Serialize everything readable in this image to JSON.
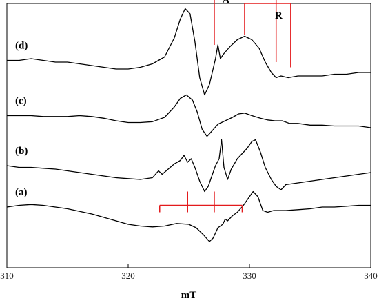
{
  "chart_data": {
    "type": "line",
    "title": "",
    "xlabel": "mT",
    "ylabel": "",
    "xlim": [
      310,
      340
    ],
    "xticks": [
      310,
      320,
      330,
      340
    ],
    "y_ticks_shown": false,
    "grid": false,
    "legend": "none",
    "line_color": "#000000",
    "annotation_color": "#e31a1c",
    "series": [
      {
        "name": "(a)",
        "baseline": 0.24,
        "points": [
          [
            310,
            0.24
          ],
          [
            311,
            0.25
          ],
          [
            312,
            0.255
          ],
          [
            313,
            0.25
          ],
          [
            314,
            0.24
          ],
          [
            315,
            0.23
          ],
          [
            316,
            0.215
          ],
          [
            317,
            0.2
          ],
          [
            318,
            0.18
          ],
          [
            319,
            0.16
          ],
          [
            320,
            0.14
          ],
          [
            321,
            0.13
          ],
          [
            322,
            0.125
          ],
          [
            323,
            0.13
          ],
          [
            324,
            0.145
          ],
          [
            325,
            0.14
          ],
          [
            325.6,
            0.12
          ],
          [
            326.2,
            0.08
          ],
          [
            326.7,
            0.04
          ],
          [
            327.0,
            0.06
          ],
          [
            327.4,
            0.12
          ],
          [
            327.8,
            0.14
          ],
          [
            328.0,
            0.17
          ],
          [
            328.2,
            0.16
          ],
          [
            328.6,
            0.19
          ],
          [
            329,
            0.21
          ],
          [
            329.5,
            0.25
          ],
          [
            330,
            0.3
          ],
          [
            330.3,
            0.33
          ],
          [
            330.7,
            0.3
          ],
          [
            331.1,
            0.22
          ],
          [
            331.5,
            0.21
          ],
          [
            332,
            0.22
          ],
          [
            333,
            0.22
          ],
          [
            334,
            0.225
          ],
          [
            335,
            0.23
          ],
          [
            336,
            0.24
          ],
          [
            337,
            0.24
          ],
          [
            338,
            0.245
          ],
          [
            339,
            0.25
          ],
          [
            340,
            0.25
          ]
        ]
      },
      {
        "name": "(b)",
        "baseline": 0.48,
        "points": [
          [
            310,
            0.48
          ],
          [
            311,
            0.47
          ],
          [
            312,
            0.47
          ],
          [
            313,
            0.465
          ],
          [
            314,
            0.46
          ],
          [
            315,
            0.45
          ],
          [
            316,
            0.44
          ],
          [
            317,
            0.43
          ],
          [
            318,
            0.42
          ],
          [
            319,
            0.41
          ],
          [
            320,
            0.405
          ],
          [
            321,
            0.4
          ],
          [
            322,
            0.41
          ],
          [
            322.5,
            0.45
          ],
          [
            322.8,
            0.43
          ],
          [
            323.3,
            0.46
          ],
          [
            323.8,
            0.49
          ],
          [
            324.3,
            0.51
          ],
          [
            324.6,
            0.54
          ],
          [
            324.9,
            0.5
          ],
          [
            325.2,
            0.52
          ],
          [
            325.5,
            0.47
          ],
          [
            325.9,
            0.39
          ],
          [
            326.3,
            0.33
          ],
          [
            326.6,
            0.36
          ],
          [
            326.9,
            0.42
          ],
          [
            327.2,
            0.48
          ],
          [
            327.5,
            0.52
          ],
          [
            327.7,
            0.63
          ],
          [
            327.9,
            0.47
          ],
          [
            328.2,
            0.4
          ],
          [
            328.5,
            0.46
          ],
          [
            329,
            0.52
          ],
          [
            329.4,
            0.55
          ],
          [
            329.8,
            0.58
          ],
          [
            330.2,
            0.62
          ],
          [
            330.5,
            0.63
          ],
          [
            330.9,
            0.56
          ],
          [
            331.3,
            0.47
          ],
          [
            331.8,
            0.4
          ],
          [
            332.2,
            0.36
          ],
          [
            332.6,
            0.34
          ],
          [
            333,
            0.37
          ],
          [
            334,
            0.38
          ],
          [
            335,
            0.39
          ],
          [
            336,
            0.4
          ],
          [
            337,
            0.41
          ],
          [
            338,
            0.42
          ],
          [
            339,
            0.43
          ],
          [
            340,
            0.44
          ]
        ]
      },
      {
        "name": "(c)",
        "baseline": 0.77,
        "points": [
          [
            310,
            0.77
          ],
          [
            311,
            0.77
          ],
          [
            312,
            0.77
          ],
          [
            313,
            0.765
          ],
          [
            314,
            0.765
          ],
          [
            315,
            0.765
          ],
          [
            316,
            0.77
          ],
          [
            317,
            0.765
          ],
          [
            318,
            0.755
          ],
          [
            319,
            0.74
          ],
          [
            320,
            0.73
          ],
          [
            321,
            0.73
          ],
          [
            322,
            0.735
          ],
          [
            323,
            0.76
          ],
          [
            323.8,
            0.82
          ],
          [
            324.3,
            0.87
          ],
          [
            324.8,
            0.89
          ],
          [
            325.3,
            0.86
          ],
          [
            325.7,
            0.79
          ],
          [
            326.1,
            0.69
          ],
          [
            326.5,
            0.65
          ],
          [
            326.9,
            0.68
          ],
          [
            327.4,
            0.72
          ],
          [
            328,
            0.74
          ],
          [
            328.6,
            0.76
          ],
          [
            329.1,
            0.78
          ],
          [
            329.6,
            0.785
          ],
          [
            330.2,
            0.77
          ],
          [
            330.9,
            0.755
          ],
          [
            331.5,
            0.745
          ],
          [
            332.1,
            0.74
          ],
          [
            332.7,
            0.74
          ],
          [
            333.3,
            0.725
          ],
          [
            334,
            0.725
          ],
          [
            335,
            0.715
          ],
          [
            336,
            0.715
          ],
          [
            337,
            0.71
          ],
          [
            338,
            0.71
          ],
          [
            339,
            0.71
          ],
          [
            340,
            0.7
          ]
        ]
      },
      {
        "name": "(d)",
        "baseline": 1.09,
        "points": [
          [
            310,
            1.09
          ],
          [
            311,
            1.09
          ],
          [
            312,
            1.1
          ],
          [
            313,
            1.09
          ],
          [
            314,
            1.08
          ],
          [
            315,
            1.08
          ],
          [
            316,
            1.07
          ],
          [
            317,
            1.06
          ],
          [
            318,
            1.05
          ],
          [
            319,
            1.04
          ],
          [
            320,
            1.04
          ],
          [
            321,
            1.05
          ],
          [
            322,
            1.07
          ],
          [
            323,
            1.11
          ],
          [
            323.8,
            1.22
          ],
          [
            324.3,
            1.33
          ],
          [
            324.7,
            1.39
          ],
          [
            325.1,
            1.36
          ],
          [
            325.5,
            1.2
          ],
          [
            325.9,
            0.99
          ],
          [
            326.3,
            0.89
          ],
          [
            326.7,
            0.95
          ],
          [
            327,
            1.04
          ],
          [
            327.2,
            1.1
          ],
          [
            327.4,
            1.18
          ],
          [
            327.6,
            1.1
          ],
          [
            327.9,
            1.13
          ],
          [
            328.4,
            1.17
          ],
          [
            329,
            1.21
          ],
          [
            329.6,
            1.23
          ],
          [
            330.2,
            1.21
          ],
          [
            330.8,
            1.16
          ],
          [
            331.3,
            1.08
          ],
          [
            331.8,
            1.02
          ],
          [
            332.2,
            0.99
          ],
          [
            332.6,
            1.0
          ],
          [
            333.2,
            0.99
          ],
          [
            334,
            1.0
          ],
          [
            335,
            1.0
          ],
          [
            336,
            1.0
          ],
          [
            337,
            1.01
          ],
          [
            338,
            1.01
          ],
          [
            339,
            1.02
          ],
          [
            340,
            1.02
          ]
        ]
      }
    ],
    "annotations": [
      {
        "label": "A",
        "x_start": 327.1,
        "x_end": 332.2,
        "y_bracket": 1.49,
        "y_leg_a": 1.18,
        "y_leg_b": 1.08
      },
      {
        "label": "R",
        "x_start": 329.6,
        "x_end": 333.4,
        "y_bracket": 1.42,
        "y_leg_a": 1.24,
        "y_leg_b": 1.05
      },
      {
        "label": "",
        "type": "stick",
        "x_start": 322.6,
        "x_end": 329.4,
        "y_bar": 0.25,
        "drop": 0.04,
        "inner_ticks": [
          324.9,
          327.1
        ],
        "tick_up": 0.08
      }
    ]
  }
}
